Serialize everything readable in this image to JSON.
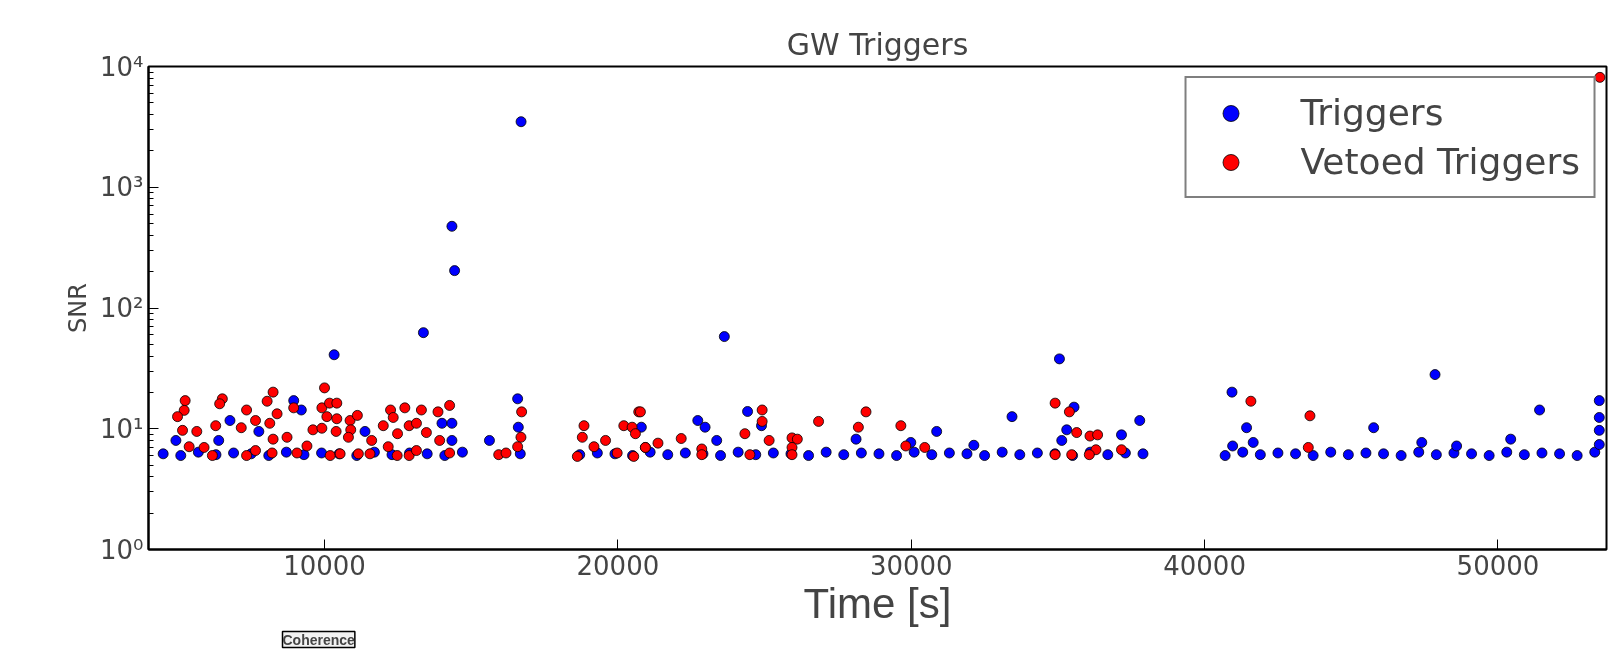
{
  "chart_data": {
    "type": "scatter",
    "title": "GW Triggers",
    "xlabel": "Time [s]",
    "ylabel": "SNR",
    "log": "y",
    "xlim": [
      4000,
      53700
    ],
    "ylim": [
      1,
      10000
    ],
    "xticks": [
      10000,
      20000,
      30000,
      40000,
      50000
    ],
    "yticks": [
      {
        "value": 1,
        "label": "10⁰"
      },
      {
        "value": 10,
        "label": "10¹"
      },
      {
        "value": 100,
        "label": "10²"
      },
      {
        "value": 1000,
        "label": "10³"
      },
      {
        "value": 10000,
        "label": "10⁴"
      }
    ],
    "grid": false,
    "legend": "top right",
    "marker": "circle",
    "annotations": [
      "Coherence"
    ],
    "series": [
      {
        "name": "Triggers",
        "color": "#0000ff",
        "x": [
          4500,
          5100,
          5700,
          6300,
          6900,
          7500,
          8100,
          8700,
          9300,
          9900,
          10500,
          11100,
          11700,
          12300,
          12900,
          13500,
          14100,
          14700,
          18700,
          19300,
          19900,
          20500,
          21100,
          21700,
          22300,
          22900,
          23500,
          24100,
          24700,
          25300,
          25900,
          26500,
          27100,
          27700,
          28300,
          28900,
          29500,
          30100,
          30700,
          31300,
          31900,
          32500,
          33100,
          33700,
          34300,
          34900,
          35500,
          36100,
          36700,
          37300,
          37900,
          40700,
          41300,
          41900,
          42500,
          43100,
          43700,
          44300,
          44900,
          45500,
          46100,
          46700,
          47300,
          47900,
          48500,
          49100,
          49700,
          50300,
          50900,
          51500,
          52100,
          52700,
          53300,
          16700,
          14343,
          14434,
          13371,
          10328,
          16583,
          15622,
          8950,
          9209,
          6777,
          7761,
          14004,
          14343,
          14343,
          11380,
          6393,
          4934,
          16606,
          16673,
          23629,
          35052,
          20800,
          22724,
          22973,
          23369,
          24421,
          24896,
          28119,
          30867,
          33435,
          35549,
          35300,
          35131,
          37167,
          37789,
          32134,
          29985,
          40934,
          41431,
          41657,
          45763,
          47855,
          51418,
          50434,
          47403,
          48590,
          53454,
          53454,
          53454,
          53454,
          40956
        ],
        "values": [
          6.2,
          6.0,
          6.4,
          6.1,
          6.3,
          6.2,
          6.0,
          6.4,
          6.1,
          6.3,
          6.2,
          6.0,
          6.4,
          6.1,
          6.3,
          6.2,
          6.0,
          6.4,
          6.1,
          6.3,
          6.2,
          6.0,
          6.4,
          6.1,
          6.3,
          6.2,
          6.0,
          6.4,
          6.1,
          6.3,
          6.2,
          6.0,
          6.4,
          6.1,
          6.3,
          6.2,
          6.0,
          6.4,
          6.1,
          6.3,
          6.2,
          6.0,
          6.4,
          6.1,
          6.3,
          6.2,
          6.0,
          6.4,
          6.1,
          6.3,
          6.2,
          6.0,
          6.4,
          6.1,
          6.3,
          6.2,
          6.0,
          6.4,
          6.1,
          6.3,
          6.2,
          6.0,
          6.4,
          6.1,
          6.3,
          6.2,
          6.0,
          6.4,
          6.1,
          6.3,
          6.2,
          6.0,
          6.4,
          3490,
          475,
          204,
          62.5,
          41,
          17.7,
          8.0,
          17.1,
          14.3,
          11.7,
          9.5,
          11.1,
          11.1,
          8.0,
          9.5,
          8.0,
          8.0,
          10.3,
          6.2,
          58,
          37.9,
          10.3,
          11.7,
          10.3,
          8.0,
          13.9,
          10.6,
          8.2,
          9.5,
          12.6,
          15.1,
          9.8,
          8.0,
          8.9,
          11.7,
          7.3,
          7.7,
          20.1,
          10.2,
          7.7,
          10.2,
          28.1,
          14.3,
          8.2,
          7.7,
          7.2,
          17.1,
          12.4,
          9.7,
          7.4,
          7.2
        ]
      },
      {
        "name": "Vetoed Triggers",
        "color": "#ff0000",
        "x": [
          5250,
          5216,
          4990,
          5160,
          5646,
          6517,
          6426,
          6291,
          7343,
          7162,
          7648,
          8044,
          8247,
          8383,
          8134,
          8247,
          8722,
          8949,
          10000,
          9910,
          10170,
          10419,
          10080,
          10419,
          9605,
          9910,
          10396,
          10871,
          11120,
          10894,
          10815,
          11607,
          12251,
          12342,
          12738,
          12003,
          12489,
          12885,
          13134,
          13303,
          13473,
          13868,
          14264,
          13925,
          16719,
          16696,
          16583,
          15938,
          16187,
          5386,
          5895,
          6178,
          7343,
          7648,
          8213,
          9062,
          9401,
          10193,
          10532,
          11154,
          11550,
          12172,
          12477,
          12885,
          13134,
          14264,
          18845,
          18788,
          18619,
          19185,
          19580,
          20202,
          20485,
          20711,
          20598,
          19976,
          20937,
          20541,
          20768,
          20937,
          21367,
          22159,
          22860,
          22860,
          24330,
          24500,
          24918,
          24918,
          25156,
          25936,
          26117,
          25936,
          25936,
          26841,
          28458,
          28198,
          29646,
          29815,
          30460,
          34905,
          35391,
          35640,
          36093,
          36353,
          36296,
          36070,
          34905,
          35470,
          37167,
          41578,
          43591,
          43535,
          53476
        ],
        "values": [
          17.1,
          14.2,
          12.6,
          9.7,
          9.5,
          17.7,
          16.1,
          10.6,
          14.3,
          10.2,
          11.7,
          16.9,
          20.1,
          13.3,
          11.1,
          8.2,
          8.5,
          14.9,
          21.8,
          14.9,
          16.3,
          16.3,
          12.6,
          12.1,
          9.8,
          10.1,
          9.5,
          11.7,
          12.9,
          9.8,
          8.5,
          8.0,
          14.3,
          12.4,
          14.9,
          10.6,
          9.1,
          10.6,
          11.1,
          14.3,
          9.3,
          13.8,
          15.6,
          8.0,
          13.8,
          8.5,
          7.1,
          6.1,
          6.3,
          7.1,
          7.0,
          6.0,
          6.0,
          6.6,
          6.3,
          6.3,
          7.2,
          6.0,
          6.2,
          6.2,
          6.2,
          7.1,
          6.0,
          6.0,
          6.6,
          6.3,
          10.6,
          8.5,
          5.9,
          7.1,
          8.0,
          10.6,
          10.3,
          13.8,
          9.1,
          6.3,
          7.0,
          5.9,
          13.8,
          7.0,
          7.6,
          8.3,
          6.8,
          6.1,
          9.1,
          6.1,
          14.3,
          11.5,
          8.0,
          8.4,
          8.2,
          7.0,
          6.1,
          11.5,
          13.8,
          10.3,
          10.6,
          7.2,
          7.0,
          16.3,
          13.8,
          9.3,
          8.7,
          8.9,
          6.7,
          6.1,
          6.1,
          6.1,
          6.7,
          16.9,
          12.8,
          7.0,
          8130
        ]
      }
    ]
  }
}
